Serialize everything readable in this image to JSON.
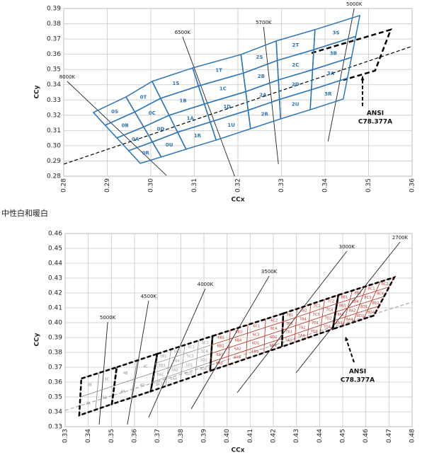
{
  "heading": "中性白和暖白",
  "chart_data": [
    {
      "type": "bin-map",
      "xlabel": "CCx",
      "ylabel": "CCy",
      "xlim": [
        0.28,
        0.36
      ],
      "ylim": [
        0.28,
        0.39
      ],
      "xticks": [
        0.28,
        0.29,
        {
          "value": 0.3,
          "label": "0.30"
        },
        0.31,
        0.32,
        0.33,
        0.34,
        0.35,
        0.36
      ],
      "yticks": [
        0.28,
        0.29,
        {
          "value": 0.3,
          "label": "0.30"
        },
        0.31,
        0.32,
        0.33,
        0.34,
        0.35,
        0.36,
        0.37,
        0.38,
        0.39
      ],
      "grid": true,
      "outline": "solid",
      "boundaries": [
        {
          "x": [
            0.2868,
            0.2976
          ],
          "y": [
            0.3218,
            0.2884
          ]
        },
        {
          "x": [
            0.2943,
            0.3024
          ],
          "y": [
            0.332,
            0.2926
          ]
        },
        {
          "x": [
            0.3003,
            0.3081
          ],
          "y": [
            0.3422,
            0.2977
          ]
        },
        {
          "x": [
            0.3096,
            0.315
          ],
          "y": [
            0.351,
            0.3037
          ]
        },
        {
          "x": [
            0.3207,
            0.3229
          ],
          "y": [
            0.3598,
            0.3111
          ]
        },
        {
          "x": [
            0.3288,
            0.3298
          ],
          "y": [
            0.3687,
            0.3176
          ]
        },
        {
          "x": [
            0.3377,
            0.3366
          ],
          "y": [
            0.3761,
            0.3236
          ]
        },
        {
          "x": [
            0.348,
            0.3442
          ],
          "y": [
            0.3854,
            0.3306
          ]
        }
      ],
      "groups": [
        {
          "labels": [
            [
              "0S"
            ],
            [
              "0B"
            ],
            [
              "0A"
            ],
            [
              "0R"
            ]
          ],
          "color": "#2e75b6"
        },
        {
          "labels": [
            [
              "0T"
            ],
            [
              "0C"
            ],
            [
              "0D"
            ],
            [
              "0U"
            ]
          ],
          "color": "#2e75b6"
        },
        {
          "labels": [
            [
              "1S"
            ],
            [
              "1B"
            ],
            [
              "1A"
            ],
            [
              "1R"
            ]
          ],
          "color": "#2e75b6"
        },
        {
          "labels": [
            [
              "1T"
            ],
            [
              "1C"
            ],
            [
              "1D"
            ],
            [
              "1U"
            ]
          ],
          "color": "#2e75b6"
        },
        {
          "labels": [
            [
              "2S"
            ],
            [
              "2B"
            ],
            [
              "2A"
            ],
            [
              "2R"
            ]
          ],
          "color": "#2e75b6"
        },
        {
          "labels": [
            [
              "2T"
            ],
            [
              "2C"
            ],
            [
              "2D"
            ],
            [
              "2U"
            ]
          ],
          "color": "#2e75b6"
        },
        {
          "labels": [
            [
              "3S"
            ],
            [
              "3B"
            ],
            [
              "3A"
            ],
            [
              "3R"
            ]
          ],
          "color": "#2e75b6"
        }
      ],
      "locus": {
        "x": [
          0.28,
          0.36
        ],
        "y": [
          0.2879,
          0.3652
        ],
        "color": "#000000"
      },
      "ansi_outline": {
        "x": [
          0.3369,
          0.3551,
          0.3515,
          0.3442
        ],
        "y": [
          0.3608,
          0.3761,
          0.3492,
          0.3431
        ]
      },
      "cct_lines": [
        {
          "name": "8000K",
          "x": [
            0.2808,
            0.3036
          ],
          "y": [
            0.3422,
            0.2805
          ]
        },
        {
          "name": "6500K",
          "x": [
            0.3073,
            0.3193
          ],
          "y": [
            0.3714,
            0.2796
          ]
        },
        {
          "name": "5700K",
          "x": [
            0.3259,
            0.3293
          ],
          "y": [
            0.3779,
            0.2879
          ]
        },
        {
          "name": "5000K",
          "x": [
            0.3467,
            0.3407
          ],
          "y": [
            0.39,
            0.3028
          ]
        }
      ],
      "annotation": [
        "ANSI",
        "C78.377A"
      ]
    },
    {
      "type": "bin-map",
      "xlabel": "CCx",
      "ylabel": "CCy",
      "xlim": [
        0.33,
        0.48
      ],
      "ylim": [
        0.33,
        0.46
      ],
      "xticks": [
        0.33,
        0.34,
        0.35,
        0.36,
        0.37,
        0.38,
        0.39,
        {
          "value": 0.4,
          "label": "0.40"
        },
        0.41,
        0.42,
        0.43,
        0.44,
        0.45,
        0.46,
        0.47,
        0.48
      ],
      "yticks": [
        0.33,
        0.34,
        0.35,
        0.36,
        0.37,
        0.38,
        0.39,
        {
          "value": 0.4,
          "label": "0.40"
        },
        0.41,
        0.42,
        0.43,
        0.44,
        0.45,
        0.46
      ],
      "grid": true,
      "outline": "dashed",
      "boundaries": [
        {
          "x": [
            0.337,
            0.3361
          ],
          "y": [
            0.3624,
            0.3376
          ]
        },
        {
          "x": [
            0.3523,
            0.3502
          ],
          "y": [
            0.37,
            0.3452
          ]
        },
        {
          "x": [
            0.3698,
            0.367
          ],
          "y": [
            0.379,
            0.3538
          ]
        },
        {
          "x": [
            0.3937,
            0.3927
          ],
          "y": [
            0.391,
            0.3676
          ]
        },
        {
          "x": [
            0.4243,
            0.4237
          ],
          "y": [
            0.4062,
            0.3838
          ]
        },
        {
          "x": [
            0.4481,
            0.4457
          ],
          "y": [
            0.4186,
            0.3957
          ]
        },
        {
          "x": [
            0.4723,
            0.4635
          ],
          "y": [
            0.4305,
            0.4048
          ]
        }
      ],
      "groups": [
        {
          "labels": [
            [
              "3B",
              "3C"
            ],
            [
              "3A",
              "3D"
            ]
          ],
          "color": "#8c8c8c"
        },
        {
          "labels": [
            [
              "4B",
              "4C"
            ],
            [
              "4A",
              "4D"
            ]
          ],
          "color": "#8c8c8c"
        },
        {
          "labels": [
            [
              "5B1",
              "5B2",
              "5C1",
              "5C2"
            ],
            [
              "5B3",
              "5B4",
              "5C3",
              "5C4"
            ],
            [
              "5A1",
              "5A2",
              "5D1",
              "5D2"
            ],
            [
              "5A3",
              "5A4",
              "5D3",
              "5D4"
            ]
          ],
          "color": "#9a9a9a"
        },
        {
          "labels": [
            [
              "6B1",
              "6B2",
              "6C1",
              "6C2"
            ],
            [
              "6B3",
              "6B4",
              "6C3",
              "6C4"
            ],
            [
              "6A1",
              "6A2",
              "6D1",
              "6D2"
            ],
            [
              "6A3",
              "6A4",
              "6D3",
              "6D4"
            ]
          ],
          "color": "#c0392b"
        },
        {
          "labels": [
            [
              "7B1",
              "7B2",
              "7C1",
              "7C2"
            ],
            [
              "7B3",
              "7B4",
              "7C3",
              "7C4"
            ],
            [
              "7A1",
              "7A2",
              "7D1",
              "7D2"
            ],
            [
              "7A3",
              "7A4",
              "7D3",
              "7D4"
            ]
          ],
          "color": "#c0392b"
        },
        {
          "labels": [
            [
              "8B1",
              "8B2",
              "8C1",
              "8C2"
            ],
            [
              "8B3",
              "8B4",
              "8C3",
              "8C4"
            ],
            [
              "8A1",
              "8A2",
              "8D1",
              "8D2"
            ],
            [
              "8A3",
              "8A4",
              "8D3",
              "8D4"
            ]
          ],
          "color": "#c0392b"
        }
      ],
      "locus": {
        "x": [
          0.33,
          0.48
        ],
        "y": [
          0.341,
          0.4138
        ],
        "color": "#aaaaaa"
      },
      "cct_lines": [
        {
          "name": "5000K",
          "x": [
            0.3484,
            0.3447
          ],
          "y": [
            0.4005,
            0.3314
          ]
        },
        {
          "name": "4500K",
          "x": [
            0.3661,
            0.3569
          ],
          "y": [
            0.4148,
            0.3314
          ]
        },
        {
          "name": "4000K",
          "x": [
            0.3906,
            0.3661
          ],
          "y": [
            0.4229,
            0.3362
          ]
        },
        {
          "name": "3500K",
          "x": [
            0.4182,
            0.3845
          ],
          "y": [
            0.4314,
            0.3419
          ]
        },
        {
          "name": "3000K",
          "x": [
            0.4518,
            0.4044
          ],
          "y": [
            0.4481,
            0.3529
          ]
        },
        {
          "name": "2700K",
          "x": [
            0.4748,
            0.4298
          ],
          "y": [
            0.4543,
            0.3662
          ]
        }
      ],
      "annotation": [
        "ANSI",
        "C78.377A"
      ]
    }
  ]
}
